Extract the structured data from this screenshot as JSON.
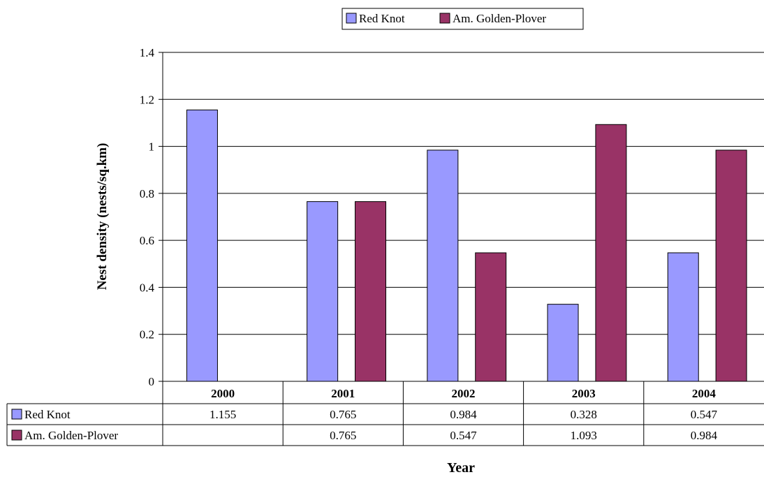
{
  "chart_data": {
    "type": "bar",
    "xlabel": "Year",
    "ylabel": "Nest density (nests/sq.km)",
    "ylim": [
      0,
      1.4
    ],
    "yticks": [
      0,
      0.2,
      0.4,
      0.6,
      0.8,
      1,
      1.2,
      1.4
    ],
    "ytick_labels": [
      "0",
      "0.2",
      "0.4",
      "0.6",
      "0.8",
      "1",
      "1.2",
      "1.4"
    ],
    "grid": true,
    "legend_position": "top",
    "categories": [
      "2000",
      "2001",
      "2002",
      "2003",
      "2004"
    ],
    "series": [
      {
        "name": "Red Knot",
        "color": "#9999ff",
        "values": [
          1.155,
          0.765,
          0.984,
          0.328,
          0.547
        ],
        "table_labels": [
          "1.155",
          "0.765",
          "0.984",
          "0.328",
          "0.547"
        ]
      },
      {
        "name": "Am. Golden-Plover",
        "color": "#993366",
        "values": [
          null,
          0.765,
          0.547,
          1.093,
          0.984
        ],
        "table_labels": [
          "",
          "0.765",
          "0.547",
          "1.093",
          "0.984"
        ]
      }
    ]
  }
}
